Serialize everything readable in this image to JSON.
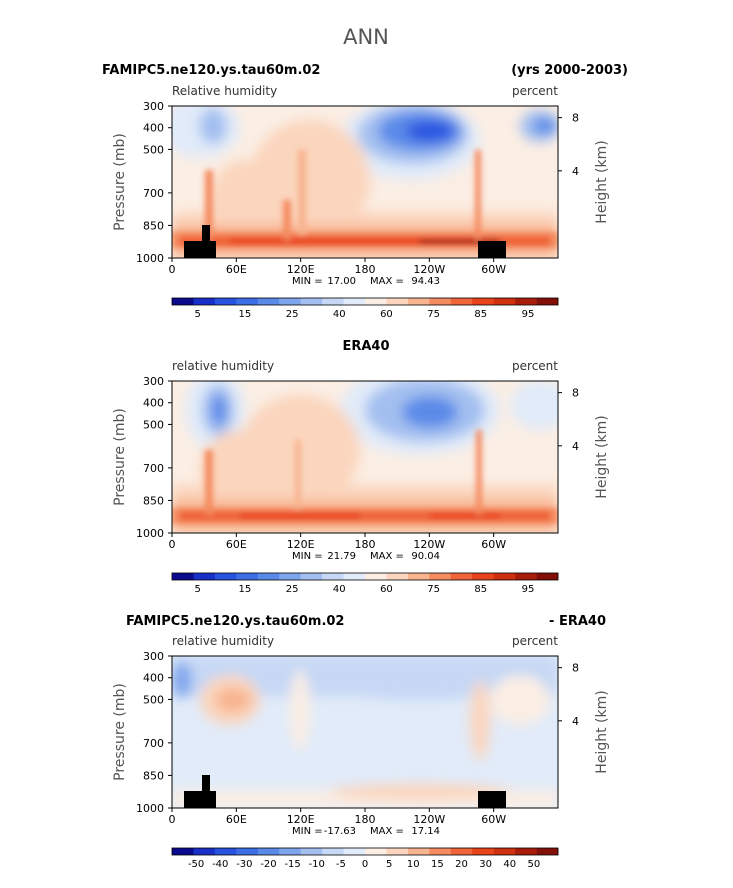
{
  "figure": {
    "title": "ANN"
  },
  "colors": {
    "abs_palette": [
      "#0a0a8c",
      "#1930c8",
      "#2852e0",
      "#3c6ee6",
      "#5a8ae8",
      "#7ea5ec",
      "#a3bff0",
      "#c6d8f5",
      "#e1ebf9",
      "#fbeee4",
      "#fbd5bd",
      "#f8b38f",
      "#f48b61",
      "#ef6438",
      "#e8441c",
      "#cf300f",
      "#a81d0a",
      "#821008"
    ],
    "diff_palette": [
      "#0a0a8c",
      "#1930c8",
      "#2852e0",
      "#3c6ee6",
      "#5a8ae8",
      "#7ea5ec",
      "#a3bff0",
      "#c6d8f5",
      "#e1ebf9",
      "#fbeee4",
      "#fbd5bd",
      "#f8b38f",
      "#f48b61",
      "#ef6438",
      "#e8441c",
      "#cf300f",
      "#a81d0a",
      "#821008"
    ],
    "terrain": "#000000"
  },
  "axes": {
    "ylabel_left": "Pressure (mb)",
    "ylabel_right": "Height (km)",
    "yticks": [
      "300",
      "400",
      "500",
      "700",
      "850",
      "1000"
    ],
    "yticks_right": [
      "8",
      "4"
    ],
    "xticks": [
      "0",
      "60E",
      "120E",
      "180",
      "120W",
      "60W"
    ]
  },
  "panels": [
    {
      "case_title": "FAMIPC5.ne120.ys.tau60m.02",
      "years": "(yrs 2000-2003)",
      "var_label": "Relative humidity",
      "units": "percent",
      "min_label": "MIN =",
      "min_value": "17.00",
      "max_label": "MAX =",
      "max_value": "94.43",
      "colorbar_labels": [
        "5",
        "15",
        "25",
        "40",
        "60",
        "75",
        "85",
        "95"
      ]
    },
    {
      "case_title": "ERA40",
      "var_label": "relative humidity",
      "units": "percent",
      "min_label": "MIN =",
      "min_value": "21.79",
      "max_label": "MAX =",
      "max_value": "90.04",
      "colorbar_labels": [
        "5",
        "15",
        "25",
        "40",
        "60",
        "75",
        "85",
        "95"
      ]
    },
    {
      "case_title": "FAMIPC5.ne120.ys.tau60m.02",
      "case_suffix": "- ERA40",
      "var_label": "relative humidity",
      "units": "percent",
      "min_label": "MIN =",
      "min_value": "-17.63",
      "max_label": "MAX =",
      "max_value": "17.14",
      "colorbar_labels": [
        "-50",
        "-40",
        "-30",
        "-20",
        "-15",
        "-10",
        "-5",
        "0",
        "5",
        "10",
        "15",
        "20",
        "30",
        "40",
        "50"
      ]
    }
  ],
  "chart_data": [
    {
      "type": "heatmap",
      "title": "FAMIPC5.ne120.ys.tau60m.02",
      "subtitle": "Relative humidity",
      "units": "percent",
      "xlabel": "",
      "ylabel": "Pressure (mb)",
      "x": [
        "0",
        "60E",
        "120E",
        "180",
        "120W",
        "60W"
      ],
      "y": [
        300,
        400,
        500,
        700,
        850,
        1000
      ],
      "levels": [
        5,
        15,
        25,
        40,
        60,
        75,
        85,
        95
      ],
      "min": 17.0,
      "max": 94.43
    },
    {
      "type": "heatmap",
      "title": "ERA40",
      "subtitle": "relative humidity",
      "units": "percent",
      "xlabel": "",
      "ylabel": "Pressure (mb)",
      "x": [
        "0",
        "60E",
        "120E",
        "180",
        "120W",
        "60W"
      ],
      "y": [
        300,
        400,
        500,
        700,
        850,
        1000
      ],
      "levels": [
        5,
        15,
        25,
        40,
        60,
        75,
        85,
        95
      ],
      "min": 21.79,
      "max": 90.04
    },
    {
      "type": "heatmap",
      "title": "FAMIPC5.ne120.ys.tau60m.02 - ERA40",
      "subtitle": "relative humidity",
      "units": "percent",
      "xlabel": "",
      "ylabel": "Pressure (mb)",
      "x": [
        "0",
        "60E",
        "120E",
        "180",
        "120W",
        "60W"
      ],
      "y": [
        300,
        400,
        500,
        700,
        850,
        1000
      ],
      "levels": [
        -50,
        -40,
        -30,
        -20,
        -15,
        -10,
        -5,
        0,
        5,
        10,
        15,
        20,
        30,
        40,
        50
      ],
      "min": -17.63,
      "max": 17.14
    }
  ]
}
